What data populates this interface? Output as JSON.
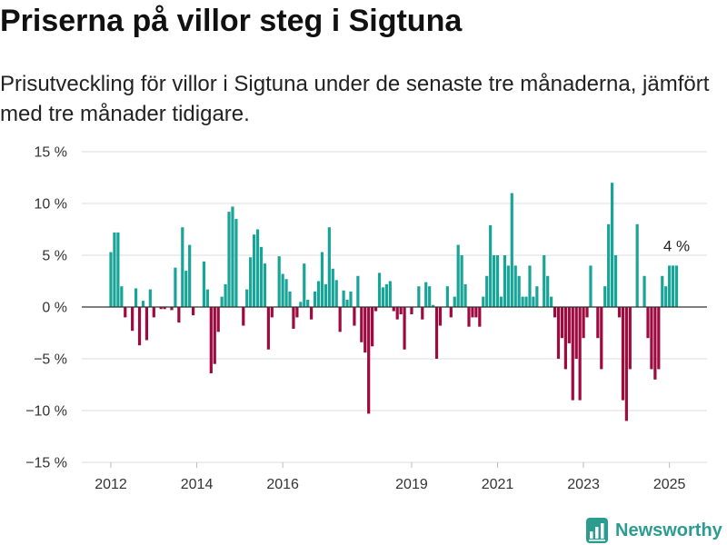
{
  "chart_data": {
    "type": "bar",
    "title": "Priserna på villor steg i Sigtuna",
    "subtitle": "Prisutveckling för villor i Sigtuna under de senaste tre månaderna, jämfört med tre månader tidigare.",
    "xlabel": "",
    "ylabel": "",
    "ylim": [
      -15,
      15
    ],
    "yticks": [
      15,
      10,
      5,
      0,
      -5,
      -10,
      -15
    ],
    "ytick_labels": [
      "15 %",
      "10 %",
      "5 %",
      "0 %",
      "−5 %",
      "−10 %",
      "−15 %"
    ],
    "xticks": [
      "2012",
      "2014",
      "2016",
      "2019",
      "2021",
      "2023",
      "2025"
    ],
    "grid": true,
    "legend": "none",
    "colors": {
      "positive": "#19a498",
      "negative": "#9e0a3e",
      "zero_line": "#333333",
      "grid": "#dddddd"
    },
    "annotation": {
      "text": "4 %",
      "x": "2025-03"
    },
    "x": [
      "2012-01",
      "2012-02",
      "2012-03",
      "2012-04",
      "2012-05",
      "2012-06",
      "2012-07",
      "2012-08",
      "2012-09",
      "2012-10",
      "2012-11",
      "2012-12",
      "2013-01",
      "2013-02",
      "2013-03",
      "2013-04",
      "2013-05",
      "2013-06",
      "2013-07",
      "2013-08",
      "2013-09",
      "2013-10",
      "2013-11",
      "2013-12",
      "2014-01",
      "2014-02",
      "2014-03",
      "2014-04",
      "2014-05",
      "2014-06",
      "2014-07",
      "2014-08",
      "2014-09",
      "2014-10",
      "2014-11",
      "2014-12",
      "2015-01",
      "2015-02",
      "2015-03",
      "2015-04",
      "2015-05",
      "2015-06",
      "2015-07",
      "2015-08",
      "2015-09",
      "2015-10",
      "2015-11",
      "2015-12",
      "2016-01",
      "2016-02",
      "2016-03",
      "2016-04",
      "2016-05",
      "2016-06",
      "2016-07",
      "2016-08",
      "2016-09",
      "2016-10",
      "2016-11",
      "2016-12",
      "2017-01",
      "2017-02",
      "2017-03",
      "2017-04",
      "2017-05",
      "2017-06",
      "2017-07",
      "2017-08",
      "2017-09",
      "2017-10",
      "2017-11",
      "2017-12",
      "2018-01",
      "2018-02",
      "2018-03",
      "2018-04",
      "2018-05",
      "2018-06",
      "2018-07",
      "2018-08",
      "2018-09",
      "2018-10",
      "2018-11",
      "2018-12",
      "2019-01",
      "2019-02",
      "2019-03",
      "2019-04",
      "2019-05",
      "2019-06",
      "2019-07",
      "2019-08",
      "2019-09",
      "2019-10",
      "2019-11",
      "2019-12",
      "2020-01",
      "2020-02",
      "2020-03",
      "2020-04",
      "2020-05",
      "2020-06",
      "2020-07",
      "2020-08",
      "2020-09",
      "2020-10",
      "2020-11",
      "2020-12",
      "2021-01",
      "2021-02",
      "2021-03",
      "2021-04",
      "2021-05",
      "2021-06",
      "2021-07",
      "2021-08",
      "2021-09",
      "2021-10",
      "2021-11",
      "2021-12",
      "2022-01",
      "2022-02",
      "2022-03",
      "2022-04",
      "2022-05",
      "2022-06",
      "2022-07",
      "2022-08",
      "2022-09",
      "2022-10",
      "2022-11",
      "2022-12",
      "2023-01",
      "2023-02",
      "2023-03",
      "2023-04",
      "2023-05",
      "2023-06",
      "2023-07",
      "2023-08",
      "2023-09",
      "2023-10",
      "2023-11",
      "2023-12",
      "2024-01",
      "2024-02",
      "2024-03",
      "2024-04",
      "2024-05",
      "2024-06",
      "2024-07",
      "2024-08",
      "2024-09",
      "2024-10",
      "2024-11",
      "2024-12",
      "2025-01",
      "2025-02",
      "2025-03"
    ],
    "values": [
      5.3,
      7.2,
      7.2,
      2.0,
      -1.0,
      null,
      -2.3,
      1.8,
      -3.7,
      0.6,
      -3.2,
      1.7,
      -1.0,
      null,
      -0.2,
      -0.2,
      null,
      -0.3,
      3.8,
      -1.5,
      7.7,
      3.5,
      6.0,
      -0.8,
      null,
      null,
      4.4,
      1.7,
      -6.4,
      -5.5,
      -2.4,
      1.0,
      2.2,
      9.2,
      9.7,
      8.5,
      null,
      -1.8,
      1.7,
      4.8,
      7.0,
      7.5,
      5.8,
      4.2,
      -4.1,
      -1.0,
      null,
      4.9,
      3.2,
      2.7,
      1.5,
      -2.1,
      -1.0,
      0.5,
      4.2,
      0.7,
      -1.2,
      1.5,
      2.5,
      5.3,
      2.2,
      7.7,
      3.7,
      2.6,
      -2.4,
      1.6,
      0.7,
      1.5,
      -1.8,
      3.0,
      -3.4,
      -4.4,
      -10.3,
      -3.8,
      -0.4,
      3.3,
      1.9,
      2.2,
      2.5,
      -0.4,
      -1.2,
      -0.7,
      -4.1,
      null,
      -0.7,
      null,
      2.0,
      -1.2,
      2.4,
      2.0,
      0.2,
      -5.0,
      -1.8,
      null,
      2.0,
      -1.0,
      1.0,
      6.0,
      5.0,
      2.2,
      -1.9,
      -1.0,
      -1.0,
      -1.9,
      1.0,
      3.0,
      7.9,
      5.0,
      5.0,
      1.0,
      5.0,
      4.0,
      11.0,
      4.0,
      3.0,
      1.0,
      1.0,
      4.0,
      1.0,
      2.0,
      null,
      5.0,
      3.0,
      1.0,
      -1.0,
      -5.0,
      -3.0,
      -6.0,
      -3.5,
      -9.0,
      -5.0,
      -9.0,
      -3.0,
      -1.0,
      4.0,
      null,
      -3.0,
      -6.0,
      2.0,
      8.0,
      12.0,
      5.0,
      -1.0,
      -9.0,
      -11.0,
      -6.0,
      null,
      8.0,
      null,
      3.0,
      -3.0,
      -6.0,
      -7.0,
      -6.0,
      3.0,
      2.0,
      4.0,
      4.0,
      4.0
    ]
  },
  "branding": {
    "logo_text": "Newsworthy",
    "logo_icon": "bar-chart-icon",
    "color": "#2b9c90"
  }
}
